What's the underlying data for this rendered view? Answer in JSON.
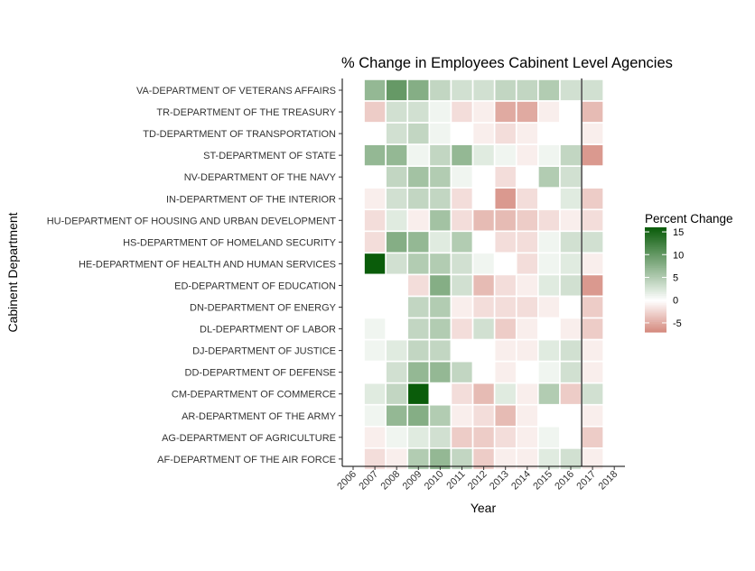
{
  "chart_data": {
    "type": "heatmap",
    "title": "% Change in Employees Cabinent Level Agencies",
    "xlabel": "Year",
    "ylabel": "Cabinent Department",
    "x_ticks": [
      "2006",
      "2007",
      "2008",
      "2009",
      "2010",
      "2011",
      "2012",
      "2013",
      "2014",
      "2015",
      "2016",
      "2017",
      "2018"
    ],
    "xlim": [
      2006,
      2018
    ],
    "reference_line": {
      "x": 2016.5
    },
    "departments": [
      "VA-DEPARTMENT OF VETERANS AFFAIRS",
      "TR-DEPARTMENT OF THE TREASURY",
      "TD-DEPARTMENT OF TRANSPORTATION",
      "ST-DEPARTMENT OF STATE",
      "NV-DEPARTMENT OF THE NAVY",
      "IN-DEPARTMENT OF THE INTERIOR",
      "HU-DEPARTMENT OF HOUSING AND URBAN DEVELOPMENT",
      "HS-DEPARTMENT OF HOMELAND SECURITY",
      "HE-DEPARTMENT OF HEALTH AND HUMAN SERVICES",
      "ED-DEPARTMENT OF EDUCATION",
      "DN-DEPARTMENT OF ENERGY",
      "DL-DEPARTMENT OF LABOR",
      "DJ-DEPARTMENT OF JUSTICE",
      "DD-DEPARTMENT OF DEFENSE",
      "CM-DEPARTMENT OF COMMERCE",
      "AR-DEPARTMENT OF THE ARMY",
      "AG-DEPARTMENT OF AGRICULTURE",
      "AF-DEPARTMENT OF THE AIR FORCE"
    ],
    "cell_years": [
      2007,
      2008,
      2009,
      2010,
      2011,
      2012,
      2013,
      2014,
      2015,
      2016,
      2017
    ],
    "values": [
      [
        7,
        10,
        8,
        4,
        3,
        3,
        4,
        4,
        5,
        3,
        3
      ],
      [
        -3,
        3,
        3,
        1,
        -2,
        -1,
        -5,
        -5,
        -1,
        0,
        -4
      ],
      [
        0,
        3,
        4,
        1,
        0,
        -1,
        -2,
        -1,
        0,
        0,
        -1
      ],
      [
        7,
        7,
        1,
        4,
        7,
        2,
        1,
        -1,
        1,
        4,
        -6
      ],
      [
        0,
        4,
        6,
        5,
        1,
        0,
        -2,
        0,
        5,
        3,
        0
      ],
      [
        -1,
        3,
        4,
        4,
        -2,
        0,
        -6,
        -2,
        0,
        2,
        -3
      ],
      [
        -2,
        2,
        -1,
        6,
        -2,
        -4,
        -4,
        -3,
        -2,
        -1,
        -2
      ],
      [
        -2,
        8,
        7,
        2,
        5,
        0,
        -2,
        -2,
        1,
        3,
        3
      ],
      [
        17,
        3,
        5,
        5,
        3,
        1,
        0,
        -2,
        1,
        2,
        -1
      ],
      [
        0,
        0,
        -2,
        8,
        3,
        -4,
        -2,
        -1,
        2,
        3,
        -6
      ],
      [
        0,
        0,
        4,
        5,
        -1,
        -2,
        -2,
        -2,
        -1,
        0,
        -3
      ],
      [
        1,
        0,
        4,
        5,
        -2,
        3,
        -3,
        -1,
        0,
        -1,
        -3
      ],
      [
        1,
        2,
        4,
        4,
        0,
        0,
        -1,
        -1,
        2,
        3,
        -1
      ],
      [
        0,
        3,
        7,
        7,
        4,
        0,
        -1,
        0,
        1,
        3,
        -1
      ],
      [
        2,
        4,
        18,
        0,
        -2,
        -4,
        2,
        -1,
        5,
        -3,
        3
      ],
      [
        1,
        7,
        8,
        5,
        -1,
        -2,
        -4,
        -1,
        0,
        0,
        -1
      ],
      [
        -1,
        1,
        2,
        3,
        -3,
        -3,
        -2,
        -1,
        1,
        0,
        -3
      ],
      [
        -2,
        -1,
        5,
        7,
        4,
        -3,
        -1,
        -1,
        2,
        3,
        -1
      ]
    ],
    "legend": {
      "title": "Percent Change",
      "ticks": [
        15,
        10,
        5,
        0,
        -5
      ],
      "range": [
        -7,
        16
      ],
      "placement": "right"
    },
    "colors": {
      "high": "#0a5c0a",
      "mid": "#ffffff",
      "low": "#d4887c"
    },
    "grid": false
  }
}
